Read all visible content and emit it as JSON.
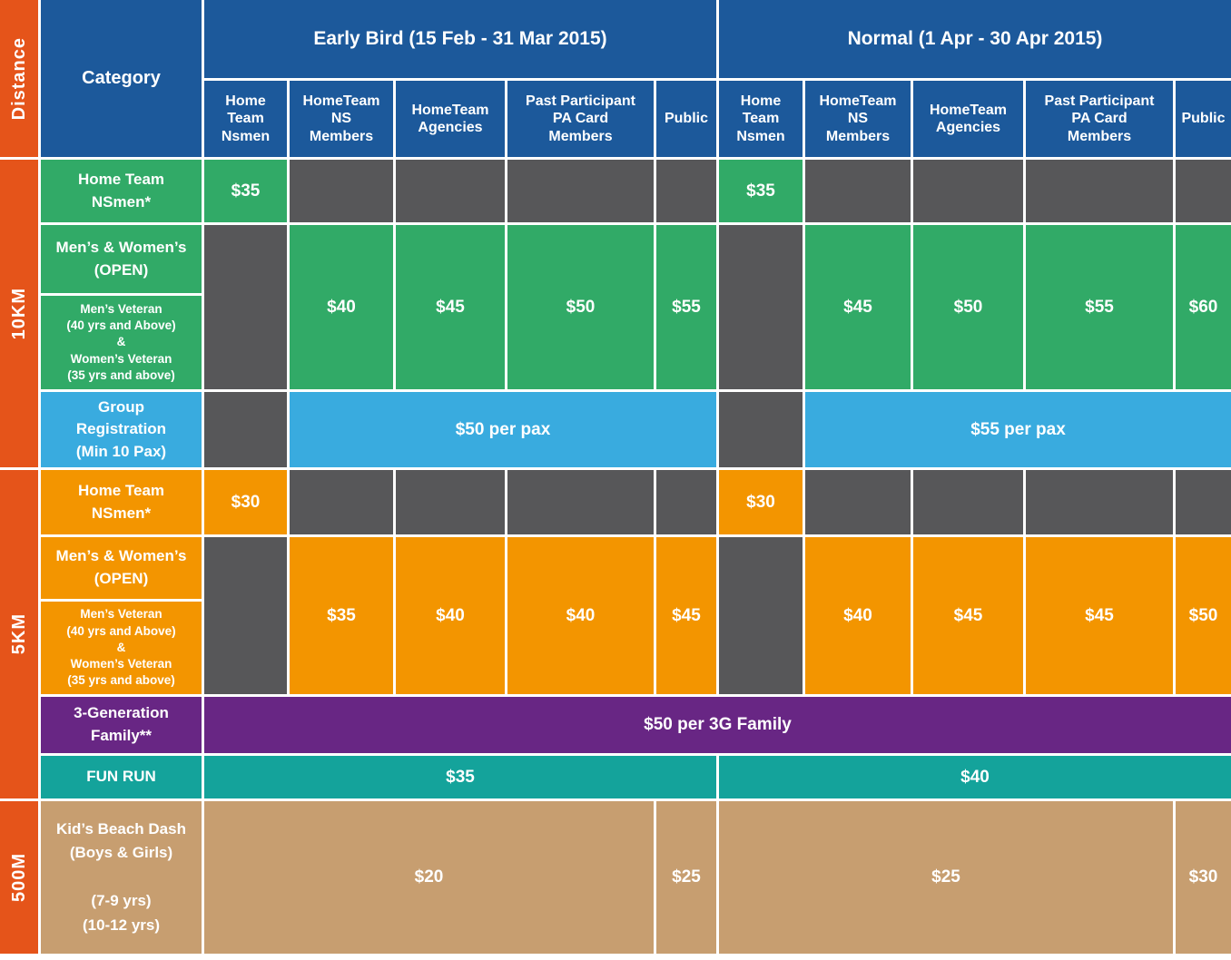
{
  "colors": {
    "header_blue": "#1C599B",
    "distance_orange": "#E5541A",
    "green_10km": "#31AA67",
    "empty_gray": "#575759",
    "blue_group_reg": "#39ABDF",
    "orange_5km": "#F39500",
    "purple_family": "#682684",
    "teal_fun_run": "#14A39B",
    "tan_500m": "#C79E70"
  },
  "chart_data": {
    "type": "table",
    "header": {
      "distance": "Distance",
      "category": "Category",
      "groups": [
        "Early Bird (15 Feb - 31 Mar 2015)",
        "Normal (1 Apr - 30 Apr 2015)"
      ],
      "cols": [
        "Home\nTeam\nNsmen",
        "HomeTeam\nNS\nMembers",
        "HomeTeam\nAgencies",
        "Past Participant\nPA Card\nMembers",
        "Public"
      ]
    },
    "sections": [
      {
        "distance": "10KM",
        "rows": {
          "nsmen": {
            "category": "Home Team\nNSmen*",
            "early_bird": "$35",
            "normal": "$35"
          },
          "open": {
            "category_open": "Men’s & Women’s\n(OPEN)",
            "category_veteran": "Men’s Veteran\n(40 yrs and Above)\n&\nWomen’s Veteran\n(35 yrs and above)",
            "early_bird": [
              "$40",
              "$45",
              "$50",
              "$55"
            ],
            "normal": [
              "$45",
              "$50",
              "$55",
              "$60"
            ]
          },
          "group_reg": {
            "category": "Group\nRegistration\n(Min 10 Pax)",
            "early_bird": "$50 per pax",
            "normal": "$55 per pax"
          }
        }
      },
      {
        "distance": "5KM",
        "rows": {
          "nsmen": {
            "category": "Home Team\nNSmen*",
            "early_bird": "$30",
            "normal": "$30"
          },
          "open": {
            "category_open": "Men’s & Women’s\n(OPEN)",
            "category_veteran": "Men’s Veteran\n(40 yrs and Above)\n&\nWomen’s Veteran\n(35 yrs and above)",
            "early_bird": [
              "$35",
              "$40",
              "$40",
              "$45"
            ],
            "normal": [
              "$40",
              "$45",
              "$45",
              "$50"
            ]
          },
          "family": {
            "category": "3-Generation\nFamily**",
            "price": "$50 per 3G Family"
          },
          "fun_run": {
            "category": "FUN RUN",
            "early_bird": "$35",
            "normal": "$40"
          }
        }
      },
      {
        "distance": "500M",
        "rows": {
          "kids": {
            "category": "Kid’s Beach Dash\n(Boys & Girls)\n\n(7-9 yrs)\n(10-12 yrs)",
            "early_bird": "$20",
            "early_bird_public": "$25",
            "normal": "$25",
            "normal_public": "$30"
          }
        }
      }
    ]
  }
}
